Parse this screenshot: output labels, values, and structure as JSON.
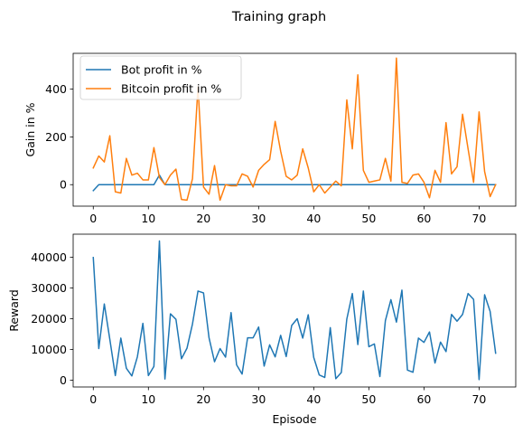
{
  "figure": {
    "suptitle": "Training graph"
  },
  "chart_data": [
    {
      "type": "line",
      "title": "",
      "xlabel": "",
      "ylabel": "Gain in %",
      "xlim": [
        -3.65,
        76.65
      ],
      "ylim": [
        -90,
        550
      ],
      "xticks": [
        0,
        10,
        20,
        30,
        40,
        50,
        60,
        70
      ],
      "yticks": [
        0,
        200,
        400
      ],
      "legend": "upper-left",
      "series": [
        {
          "name": "Bot profit in %",
          "color": "#1f77b4",
          "x": [
            0,
            1,
            2,
            3,
            4,
            5,
            6,
            7,
            8,
            9,
            10,
            11,
            12,
            13,
            14,
            15,
            16,
            17,
            18,
            19,
            20,
            21,
            22,
            23,
            24,
            25,
            26,
            27,
            28,
            29,
            30,
            31,
            32,
            33,
            34,
            35,
            36,
            37,
            38,
            39,
            40,
            41,
            42,
            43,
            44,
            45,
            46,
            47,
            48,
            49,
            50,
            51,
            52,
            53,
            54,
            55,
            56,
            57,
            58,
            59,
            60,
            61,
            62,
            63,
            64,
            65,
            66,
            67,
            68,
            69,
            70,
            71,
            72,
            73
          ],
          "values": [
            -25,
            0,
            0,
            0,
            0,
            0,
            0,
            0,
            0,
            0,
            0,
            0,
            40,
            0,
            0,
            0,
            0,
            0,
            0,
            0,
            0,
            0,
            0,
            0,
            0,
            0,
            0,
            0,
            0,
            0,
            0,
            0,
            0,
            0,
            0,
            0,
            0,
            0,
            0,
            0,
            0,
            0,
            0,
            0,
            0,
            0,
            0,
            0,
            0,
            0,
            0,
            0,
            0,
            0,
            0,
            0,
            0,
            0,
            0,
            0,
            0,
            0,
            0,
            0,
            0,
            0,
            0,
            0,
            0,
            0,
            0,
            0,
            0,
            0
          ]
        },
        {
          "name": "Bitcoin profit in %",
          "color": "#ff7f0e",
          "x": [
            0,
            1,
            2,
            3,
            4,
            5,
            6,
            7,
            8,
            9,
            10,
            11,
            12,
            13,
            14,
            15,
            16,
            17,
            18,
            19,
            20,
            21,
            22,
            23,
            24,
            25,
            26,
            27,
            28,
            29,
            30,
            31,
            32,
            33,
            34,
            35,
            36,
            37,
            38,
            39,
            40,
            41,
            42,
            43,
            44,
            45,
            46,
            47,
            48,
            49,
            50,
            51,
            52,
            53,
            54,
            55,
            56,
            57,
            58,
            59,
            60,
            61,
            62,
            63,
            64,
            65,
            66,
            67,
            68,
            69,
            70,
            71,
            72,
            73
          ],
          "values": [
            70,
            120,
            95,
            205,
            -30,
            -35,
            110,
            40,
            48,
            20,
            20,
            155,
            30,
            0,
            40,
            65,
            -62,
            -65,
            25,
            410,
            -10,
            -40,
            80,
            -65,
            0,
            -5,
            -5,
            45,
            35,
            -10,
            60,
            85,
            105,
            265,
            140,
            35,
            20,
            40,
            150,
            70,
            -30,
            0,
            -35,
            -10,
            15,
            -5,
            355,
            150,
            460,
            60,
            10,
            15,
            20,
            110,
            15,
            530,
            10,
            5,
            40,
            45,
            10,
            -55,
            60,
            10,
            260,
            45,
            75,
            295,
            150,
            10,
            305,
            55,
            -50,
            0
          ]
        }
      ]
    },
    {
      "type": "line",
      "title": "",
      "xlabel": "Episode",
      "ylabel": "Reward",
      "xlim": [
        -3.65,
        76.65
      ],
      "ylim": [
        -2200,
        47500
      ],
      "xticks": [
        0,
        10,
        20,
        30,
        40,
        50,
        60,
        70
      ],
      "yticks": [
        0,
        10000,
        20000,
        30000,
        40000
      ],
      "series": [
        {
          "color": "#1f77b4",
          "x": [
            0,
            1,
            2,
            3,
            4,
            5,
            6,
            7,
            8,
            9,
            10,
            11,
            12,
            13,
            14,
            15,
            16,
            17,
            18,
            19,
            20,
            21,
            22,
            23,
            24,
            25,
            26,
            27,
            28,
            29,
            30,
            31,
            32,
            33,
            34,
            35,
            36,
            37,
            38,
            39,
            40,
            41,
            42,
            43,
            44,
            45,
            46,
            47,
            48,
            49,
            50,
            51,
            52,
            53,
            54,
            55,
            56,
            57,
            58,
            59,
            60,
            61,
            62,
            63,
            64,
            65,
            66,
            67,
            68,
            69,
            70,
            71,
            72,
            73
          ],
          "values": [
            39900,
            10300,
            24800,
            13300,
            1500,
            13700,
            3900,
            1400,
            7600,
            18500,
            1500,
            4500,
            45300,
            400,
            21600,
            19800,
            7000,
            10400,
            18300,
            29000,
            28400,
            13800,
            6000,
            10300,
            7500,
            22000,
            5000,
            2000,
            13800,
            13800,
            17300,
            4600,
            11500,
            7600,
            14600,
            7700,
            17800,
            20000,
            13700,
            21300,
            7400,
            1700,
            900,
            17100,
            500,
            2500,
            19900,
            28200,
            11600,
            29000,
            10900,
            11800,
            1200,
            19400,
            26200,
            18900,
            29300,
            3300,
            2600,
            13700,
            12300,
            15700,
            5600,
            12400,
            9300,
            21400,
            19200,
            21400,
            28200,
            26300,
            200,
            27800,
            22400,
            8800
          ]
        }
      ]
    }
  ]
}
